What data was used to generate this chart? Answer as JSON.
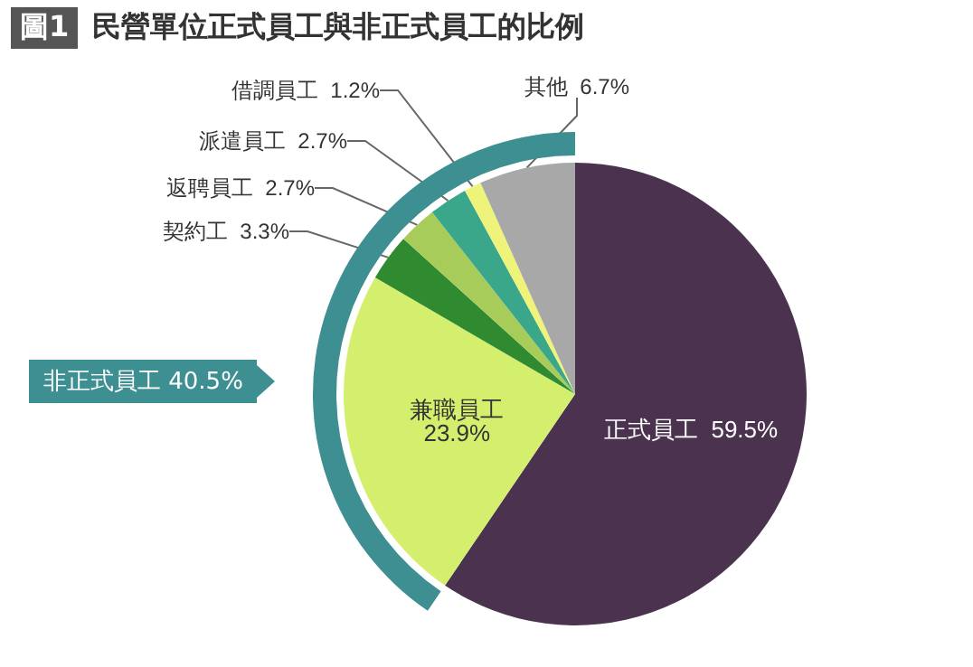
{
  "chart_data": {
    "type": "pie",
    "title": "民營單位正式員工與非正式員工的比例",
    "categories": [
      "正式員工",
      "兼職員工",
      "契約工",
      "返聘員工",
      "派遣員工",
      "借調員工",
      "其他"
    ],
    "values": [
      59.5,
      23.9,
      3.3,
      2.7,
      2.7,
      1.2,
      6.7
    ],
    "colors": [
      "#4b3350",
      "#d4ee6e",
      "#2f8a30",
      "#a8cc5a",
      "#3aa78a",
      "#eef37a",
      "#a8a8a8"
    ],
    "value_labels": [
      "59.5%",
      "23.9%",
      "3.3%",
      "2.7%",
      "2.7%",
      "1.2%",
      "6.7%"
    ],
    "legend": false,
    "annotations": [
      "圖1",
      "非正式員工 40.5%"
    ]
  }
}
